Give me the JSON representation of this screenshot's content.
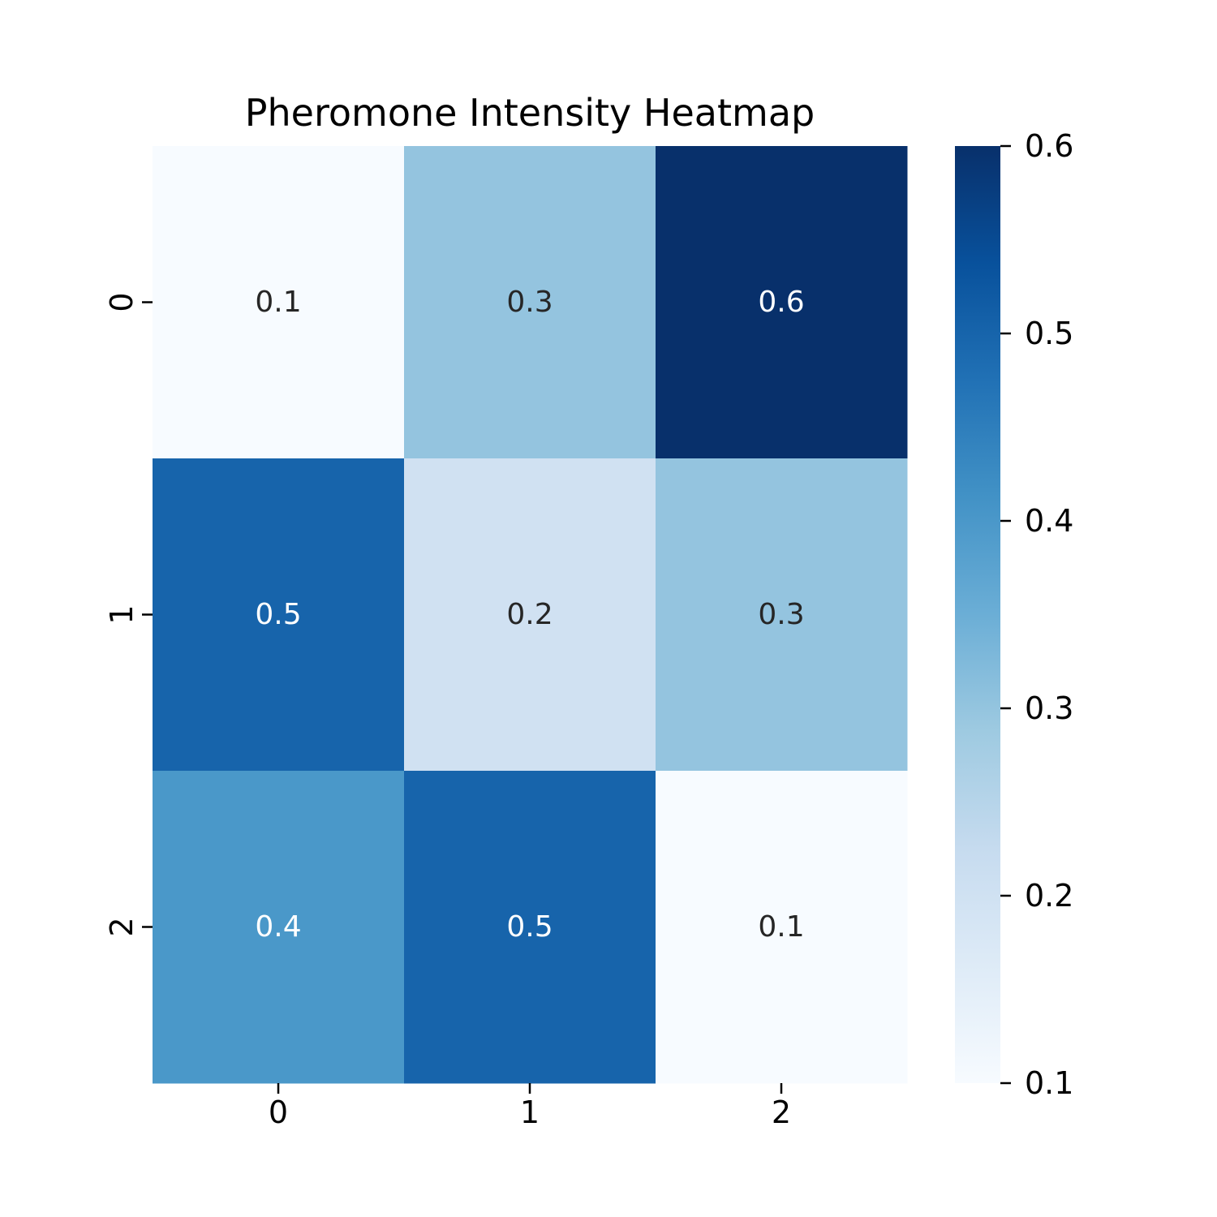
{
  "chart_data": {
    "type": "heatmap",
    "title": "Pheromone Intensity Heatmap",
    "xlabel": "",
    "ylabel": "",
    "x_categories": [
      "0",
      "1",
      "2"
    ],
    "y_categories": [
      "0",
      "1",
      "2"
    ],
    "values": [
      [
        0.1,
        0.3,
        0.6
      ],
      [
        0.5,
        0.2,
        0.3
      ],
      [
        0.4,
        0.5,
        0.1
      ]
    ],
    "value_labels": [
      [
        "0.1",
        "0.3",
        "0.6"
      ],
      [
        "0.5",
        "0.2",
        "0.3"
      ],
      [
        "0.4",
        "0.5",
        "0.1"
      ]
    ],
    "colormap": "Blues",
    "vmin": 0.1,
    "vmax": 0.6,
    "colorbar": {
      "ticks": [
        0.1,
        0.2,
        0.3,
        0.4,
        0.5,
        0.6
      ],
      "tick_labels": [
        "0.1",
        "0.2",
        "0.3",
        "0.4",
        "0.5",
        "0.6"
      ]
    },
    "annotation_colors": {
      "light": "#ffffff",
      "dark": "#262626"
    }
  }
}
